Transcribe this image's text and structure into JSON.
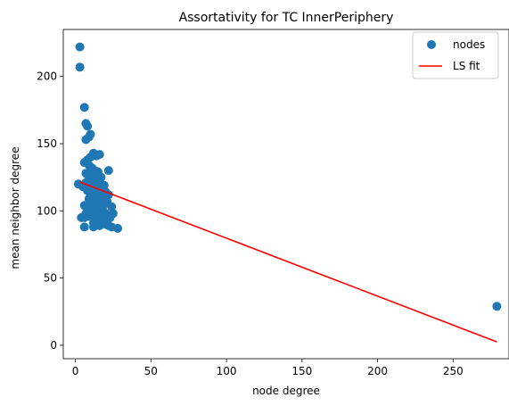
{
  "chart_data": {
    "type": "scatter",
    "title": "Assortativity for TC InnerPeriphery",
    "xlabel": "node degree",
    "ylabel": "mean neighbor degree",
    "xlim": [
      -8,
      287
    ],
    "ylim": [
      -10,
      235
    ],
    "x_ticks": [
      0,
      50,
      100,
      150,
      200,
      250
    ],
    "y_ticks": [
      0,
      50,
      100,
      150,
      200
    ],
    "grid": false,
    "legend_position": "top-right",
    "series": [
      {
        "name": "nodes",
        "kind": "scatter",
        "color": "#1f77b4",
        "points": [
          [
            3,
            222
          ],
          [
            3,
            207
          ],
          [
            6,
            177
          ],
          [
            7,
            165
          ],
          [
            8,
            163
          ],
          [
            7,
            153
          ],
          [
            9,
            155
          ],
          [
            10,
            157
          ],
          [
            6,
            136
          ],
          [
            8,
            138
          ],
          [
            10,
            140
          ],
          [
            12,
            143
          ],
          [
            14,
            141
          ],
          [
            16,
            142
          ],
          [
            9,
            134
          ],
          [
            11,
            132
          ],
          [
            13,
            130
          ],
          [
            15,
            129
          ],
          [
            22,
            130
          ],
          [
            7,
            128
          ],
          [
            9,
            125
          ],
          [
            11,
            127
          ],
          [
            13,
            124
          ],
          [
            15,
            126
          ],
          [
            17,
            125
          ],
          [
            2,
            120
          ],
          [
            5,
            118
          ],
          [
            7,
            121
          ],
          [
            9,
            119
          ],
          [
            11,
            120
          ],
          [
            13,
            118
          ],
          [
            15,
            121
          ],
          [
            17,
            117
          ],
          [
            19,
            119
          ],
          [
            8,
            115
          ],
          [
            10,
            113
          ],
          [
            12,
            114
          ],
          [
            14,
            112
          ],
          [
            16,
            115
          ],
          [
            18,
            111
          ],
          [
            20,
            114
          ],
          [
            22,
            112
          ],
          [
            9,
            109
          ],
          [
            11,
            108
          ],
          [
            13,
            110
          ],
          [
            15,
            106
          ],
          [
            17,
            108
          ],
          [
            19,
            105
          ],
          [
            21,
            107
          ],
          [
            6,
            104
          ],
          [
            8,
            102
          ],
          [
            10,
            103
          ],
          [
            12,
            100
          ],
          [
            14,
            102
          ],
          [
            16,
            99
          ],
          [
            18,
            101
          ],
          [
            20,
            98
          ],
          [
            24,
            103
          ],
          [
            7,
            98
          ],
          [
            9,
            96
          ],
          [
            11,
            97
          ],
          [
            13,
            95
          ],
          [
            15,
            93
          ],
          [
            17,
            96
          ],
          [
            19,
            94
          ],
          [
            21,
            92
          ],
          [
            23,
            95
          ],
          [
            25,
            98
          ],
          [
            4,
            95
          ],
          [
            6,
            95
          ],
          [
            12,
            91
          ],
          [
            14,
            90
          ],
          [
            16,
            89
          ],
          [
            18,
            92
          ],
          [
            20,
            90
          ],
          [
            22,
            89
          ],
          [
            24,
            88
          ],
          [
            6,
            88
          ],
          [
            12,
            88
          ],
          [
            28,
            87
          ],
          [
            279,
            29
          ]
        ]
      },
      {
        "name": "LS fit",
        "kind": "line",
        "color": "#ff0000",
        "points": [
          [
            3,
            121.5
          ],
          [
            279,
            2.5
          ]
        ]
      }
    ]
  }
}
